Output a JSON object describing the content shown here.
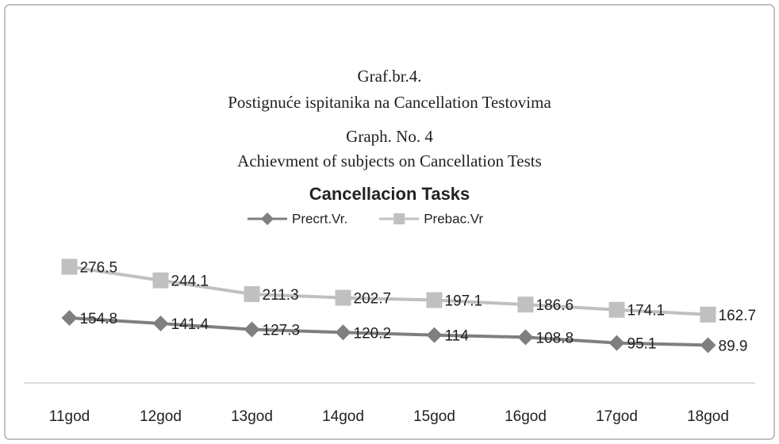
{
  "headings": [
    "Graf.br.4.",
    "Postignuće ispitanika na Cancellation Testovima",
    "Graph. No. 4",
    "Achievment of subjects on Cancellation Tests"
  ],
  "chart_data": {
    "type": "line",
    "title": "Cancellacion Tasks",
    "categories": [
      "11god",
      "12god",
      "13god",
      "14god",
      "15god",
      "16god",
      "17god",
      "18god"
    ],
    "series": [
      {
        "name": "Precrt.Vr.",
        "color": "#7f7f7f",
        "marker": "diamond",
        "values": [
          154.8,
          141.4,
          127.3,
          120.2,
          114,
          108.8,
          95.1,
          89.9
        ]
      },
      {
        "name": "Prebac.Vr",
        "color": "#c0c0c0",
        "marker": "square",
        "values": [
          276.5,
          244.1,
          211.3,
          202.7,
          197.1,
          186.6,
          174.1,
          162.7
        ]
      }
    ],
    "ylim": [
      0,
      350
    ],
    "legend": "top"
  }
}
